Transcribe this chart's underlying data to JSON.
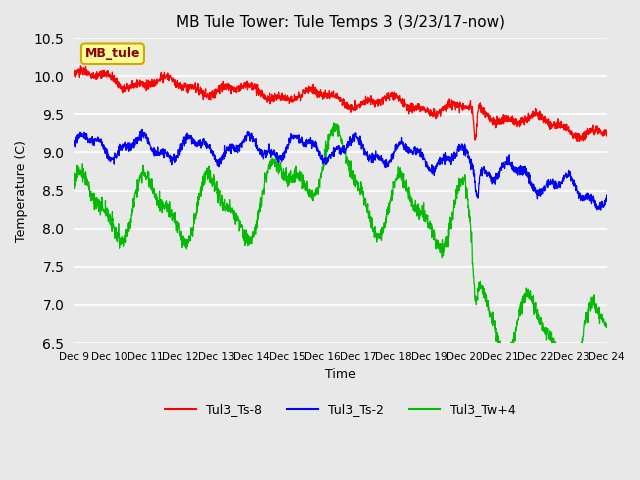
{
  "title": "MB Tule Tower: Tule Temps 3 (3/23/17-now)",
  "xlabel": "Time",
  "ylabel": "Temperature (C)",
  "ylim": [
    6.5,
    10.5
  ],
  "xlim": [
    0,
    15
  ],
  "yticks": [
    6.5,
    7.0,
    7.5,
    8.0,
    8.5,
    9.0,
    9.5,
    10.0,
    10.5
  ],
  "xtick_labels": [
    "Dec 9",
    "Dec 10",
    "Dec 11",
    "Dec 12",
    "Dec 13",
    "Dec 14",
    "Dec 15",
    "Dec 16",
    "Dec 17",
    "Dec 18",
    "Dec 19",
    "Dec 20",
    "Dec 21",
    "Dec 22",
    "Dec 23",
    "Dec 24"
  ],
  "bg_color": "#e8e8e8",
  "plot_bg_color": "#e8e8e8",
  "grid_color": "#ffffff",
  "legend_items": [
    "Tul3_Ts-8",
    "Tul3_Ts-2",
    "Tul3_Tw+4"
  ],
  "legend_colors": [
    "#ff0000",
    "#0000ff",
    "#00bb00"
  ],
  "inset_label": "MB_tule",
  "inset_bg": "#ffff99",
  "inset_border": "#ccaa00"
}
